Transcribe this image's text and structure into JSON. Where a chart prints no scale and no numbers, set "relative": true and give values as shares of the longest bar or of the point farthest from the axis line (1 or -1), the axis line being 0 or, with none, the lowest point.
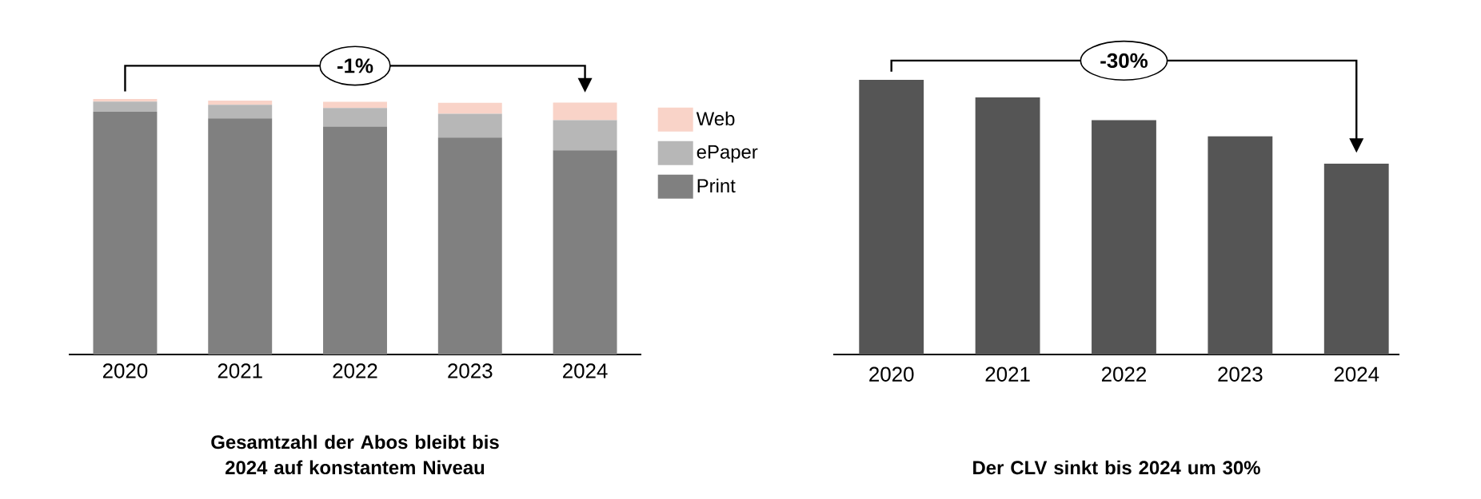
{
  "chart_data": [
    {
      "type": "bar",
      "stacked": true,
      "relative": true,
      "legend": "right",
      "title": "Gesamtzahl der Abos bleibt bis 2024 auf konstantem Niveau",
      "annotations": [
        "-1%"
      ],
      "categories": [
        "2020",
        "2021",
        "2022",
        "2023",
        "2024"
      ],
      "series": [
        {
          "name": "Print",
          "color": "#808080",
          "values": [
            0.95,
            0.924,
            0.892,
            0.849,
            0.799
          ]
        },
        {
          "name": "ePaper",
          "color": "#b7b7b7",
          "values": [
            0.04,
            0.053,
            0.073,
            0.093,
            0.118
          ]
        },
        {
          "name": "Web",
          "color": "#f9d3c8",
          "values": [
            0.01,
            0.017,
            0.024,
            0.043,
            0.069
          ]
        }
      ]
    },
    {
      "type": "bar",
      "relative": true,
      "title": "Der CLV sinkt bis 2024 um 30%",
      "annotations": [
        "-30%"
      ],
      "categories": [
        "2020",
        "2021",
        "2022",
        "2023",
        "2024"
      ],
      "color": "#555555",
      "values": [
        1,
        0.936,
        0.853,
        0.794,
        0.695
      ]
    }
  ]
}
